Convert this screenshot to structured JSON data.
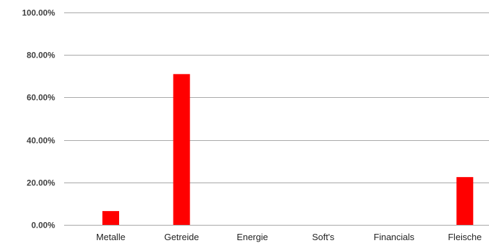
{
  "chart_data": {
    "type": "bar",
    "categories": [
      "Metalle",
      "Getreide",
      "Energie",
      "Soft's",
      "Financials",
      "Fleische"
    ],
    "values": [
      6.5,
      71.0,
      0,
      0,
      0,
      22.5
    ],
    "ylim": [
      0,
      100
    ],
    "yticks": [
      0,
      20,
      40,
      60,
      80,
      100
    ],
    "ytick_labels": [
      "0.00%",
      "20.00%",
      "40.00%",
      "60.00%",
      "80.00%",
      "100.00%"
    ],
    "grid": true,
    "bar_color": "#ff0000",
    "gridline_color": "#a6a6a6"
  }
}
